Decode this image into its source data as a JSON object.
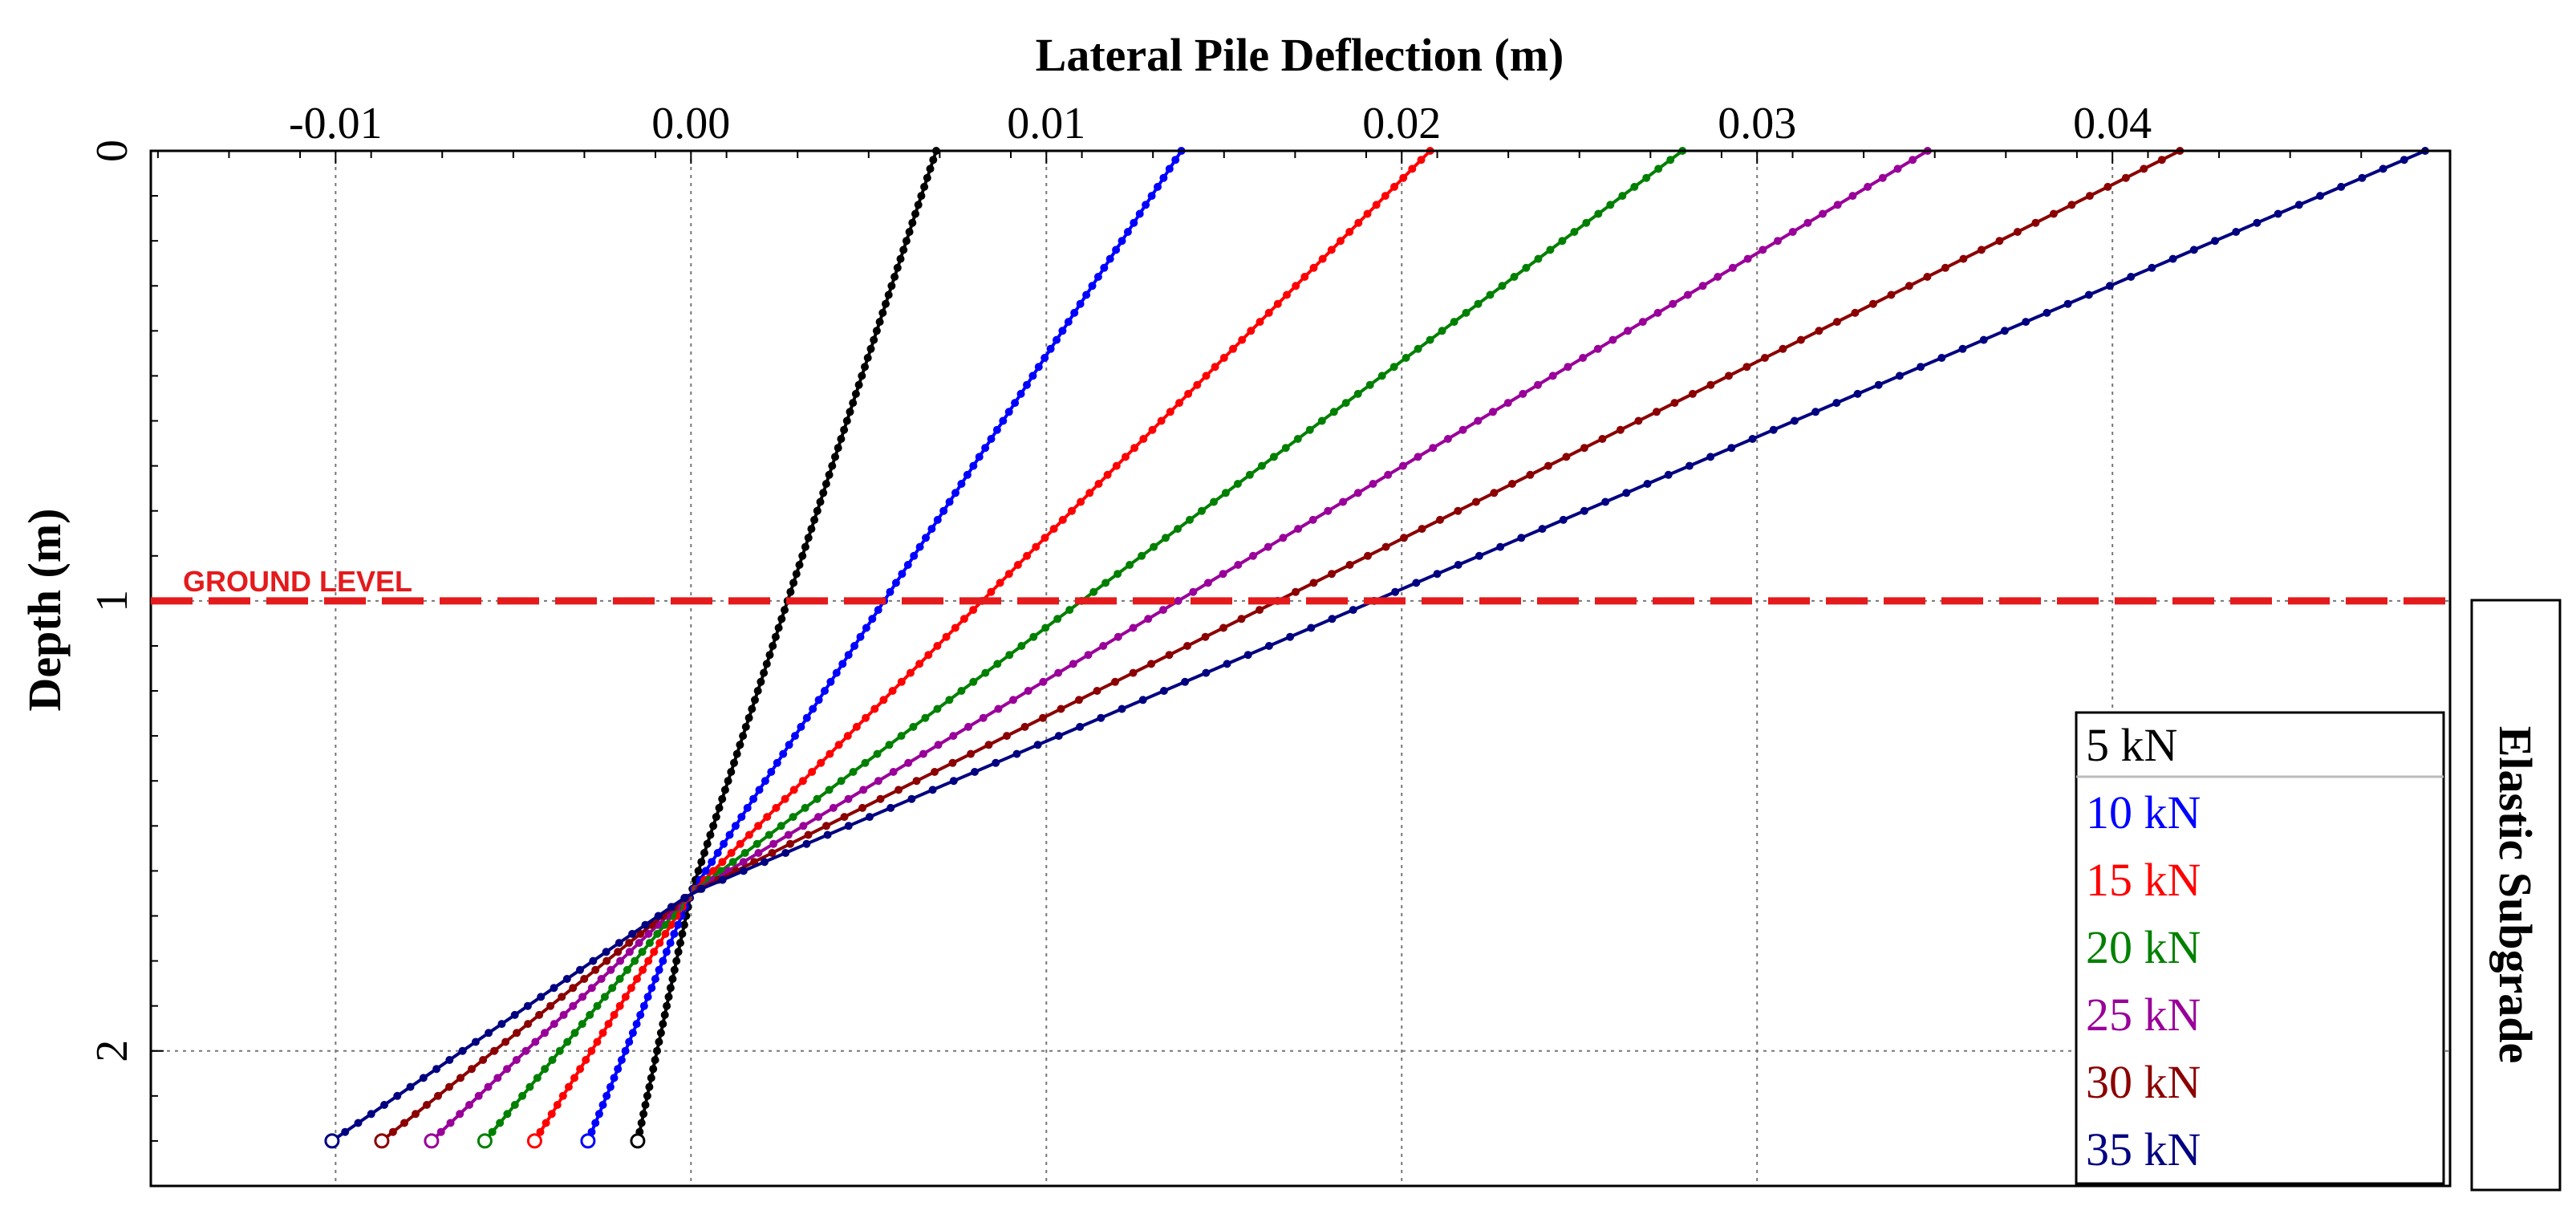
{
  "chart_data": {
    "type": "line",
    "title": "Lateral Pile Deflection (m)",
    "xlabel": "Lateral Pile Deflection (m)",
    "ylabel": "Depth (m)",
    "xlim": [
      -0.0152,
      0.0495
    ],
    "ylim": [
      0,
      2.3
    ],
    "y_inverted": true,
    "x_axis_position": "top",
    "grid": true,
    "x_ticks": [
      -0.01,
      0.0,
      0.01,
      0.02,
      0.03,
      0.04
    ],
    "x_tick_labels": [
      "-0.01",
      "0.00",
      "0.01",
      "0.02",
      "0.03",
      "0.04"
    ],
    "y_ticks": [
      0,
      1,
      2
    ],
    "y_tick_labels": [
      "0",
      "1",
      "2"
    ],
    "series": [
      {
        "name": "5 kN",
        "color": "#000000",
        "top_deflection": 0.0069,
        "tip_deflection": -0.0015
      },
      {
        "name": "10 kN",
        "color": "#0000ff",
        "top_deflection": 0.0138,
        "tip_deflection": -0.0029
      },
      {
        "name": "15 kN",
        "color": "#ff0000",
        "top_deflection": 0.0208,
        "tip_deflection": -0.0044
      },
      {
        "name": "20 kN",
        "color": "#008000",
        "top_deflection": 0.0279,
        "tip_deflection": -0.0058
      },
      {
        "name": "25 kN",
        "color": "#990099",
        "top_deflection": 0.0348,
        "tip_deflection": -0.0073
      },
      {
        "name": "30 kN",
        "color": "#8b0000",
        "top_deflection": 0.0419,
        "tip_deflection": -0.0087
      },
      {
        "name": "35 kN",
        "color": "#000080",
        "top_deflection": 0.0488,
        "tip_deflection": -0.0101
      }
    ],
    "depth_start": 0,
    "depth_end": 2.2,
    "depth_step": 0.02,
    "pivot_depth": 1.65,
    "ground_level": {
      "depth": 1.0,
      "label": "GROUND LEVEL",
      "color": "#e41a1c"
    },
    "side_label": "Elastic Subgrade",
    "legend_position": "bottom-right"
  }
}
